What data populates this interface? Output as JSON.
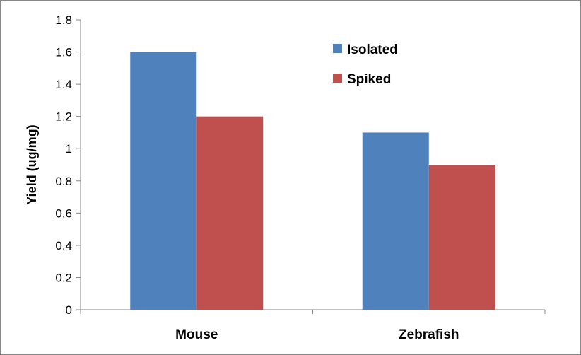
{
  "chart_data": {
    "type": "bar",
    "title": "",
    "xlabel": "",
    "ylabel": "Yield (ug/mg)",
    "ylim": [
      0,
      1.8
    ],
    "yticks": [
      "0",
      "0.2",
      "0.4",
      "0.6",
      "0.8",
      "1",
      "1.2",
      "1.4",
      "1.6",
      "1.8"
    ],
    "grid": false,
    "legend_position": "top-right",
    "categories": [
      "Mouse",
      "Zebrafish"
    ],
    "series": [
      {
        "name": "Isolated",
        "color": "#4F81BD",
        "values": [
          1.6,
          1.1
        ]
      },
      {
        "name": "Spiked",
        "color": "#C0504D",
        "values": [
          1.2,
          0.9
        ]
      }
    ]
  }
}
